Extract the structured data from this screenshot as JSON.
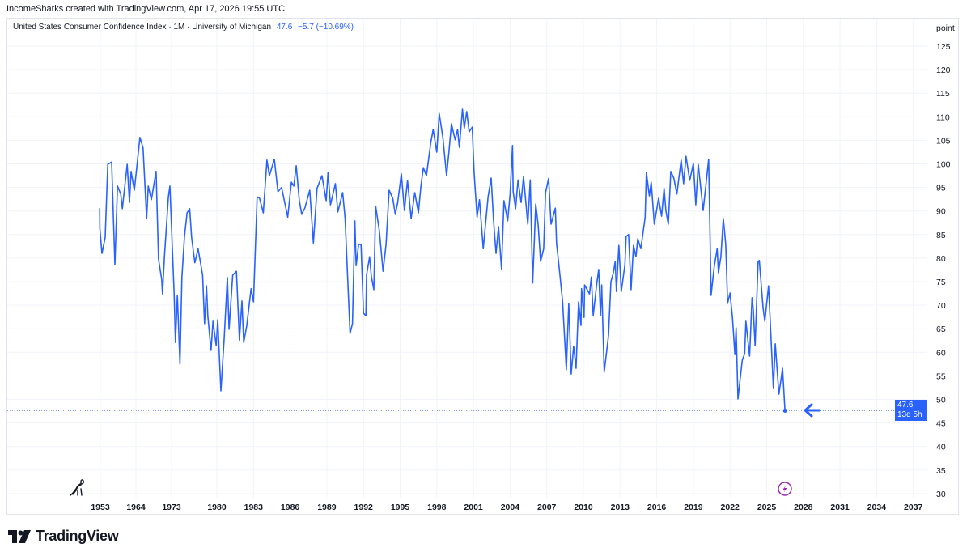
{
  "header": {
    "credit": "IncomeSharks created with TradingView.com, Apr 17, 2026 19:55 UTC"
  },
  "legend": {
    "title": "United States Consumer Confidence Index · 1M · University of Michigan",
    "last": "47.6",
    "change": "−5.7 (−10.69%)"
  },
  "price_tag": {
    "value": "47.6",
    "countdown": "13d 5h"
  },
  "brand": {
    "logo_text": "TradingView"
  },
  "colors": {
    "line": "#2962ff",
    "grid": "#f0f3fa",
    "lightning": "#9c27b0"
  },
  "icons": [
    "dino-icon",
    "lightning-icon",
    "arrow-left-icon",
    "tradingview-logo-icon"
  ],
  "chart_data": {
    "type": "line",
    "title": "United States Consumer Confidence Index · 1M · University of Michigan",
    "ylabel": "point",
    "ylim": [
      30,
      127
    ],
    "yticks": [
      125,
      120,
      115,
      110,
      105,
      100,
      95,
      90,
      85,
      80,
      75,
      70,
      65,
      60,
      55,
      50,
      45,
      40,
      35,
      30
    ],
    "xticks": [
      1953,
      1964,
      1973,
      1980,
      1983,
      1986,
      1989,
      1992,
      1995,
      1998,
      2001,
      2004,
      2007,
      2010,
      2013,
      2016,
      2019,
      2022,
      2025,
      2028,
      2031,
      2034,
      2037
    ],
    "grid": true,
    "last_value": 47.6,
    "series": [
      {
        "points": [
          [
            1952.8,
            90.6
          ],
          [
            1952.85,
            86.3
          ],
          [
            1953.5,
            81
          ],
          [
            1954.5,
            84.4
          ],
          [
            1955.3,
            99.9
          ],
          [
            1956.5,
            100.4
          ],
          [
            1957.5,
            78.6
          ],
          [
            1958.3,
            95.3
          ],
          [
            1959.3,
            93.6
          ],
          [
            1959.8,
            90.5
          ],
          [
            1961.3,
            99.9
          ],
          [
            1962,
            91.8
          ],
          [
            1962.5,
            98.4
          ],
          [
            1963.5,
            94.4
          ],
          [
            1964.4,
            100.8
          ],
          [
            1965,
            105.6
          ],
          [
            1965.8,
            103.4
          ],
          [
            1966.7,
            88.4
          ],
          [
            1967.1,
            95.3
          ],
          [
            1967.9,
            92.4
          ],
          [
            1969.1,
            98.4
          ],
          [
            1969.7,
            79.8
          ],
          [
            1970.5,
            75.5
          ],
          [
            1970.7,
            72.4
          ],
          [
            1971.2,
            80.3
          ],
          [
            1972.2,
            93
          ],
          [
            1972.6,
            95.3
          ],
          [
            1973.4,
            72.4
          ],
          [
            1973.6,
            62.1
          ],
          [
            1973.9,
            72.1
          ],
          [
            1974.3,
            57.5
          ],
          [
            1974.6,
            75.9
          ],
          [
            1975,
            84.6
          ],
          [
            1975.4,
            89.6
          ],
          [
            1975.8,
            90.5
          ],
          [
            1976.1,
            84.4
          ],
          [
            1976.6,
            79
          ],
          [
            1977.1,
            82
          ],
          [
            1977.8,
            76.4
          ],
          [
            1978.1,
            66.1
          ],
          [
            1978.4,
            74.1
          ],
          [
            1978.6,
            67.8
          ],
          [
            1979.1,
            60.4
          ],
          [
            1979.4,
            66.6
          ],
          [
            1979.9,
            61.4
          ],
          [
            1980.07,
            66.9
          ],
          [
            1980.33,
            51.8
          ],
          [
            1980.6,
            63.1
          ],
          [
            1980.86,
            75.9
          ],
          [
            1981,
            64.9
          ],
          [
            1981.3,
            76.4
          ],
          [
            1981.6,
            77.2
          ],
          [
            1981.85,
            62.6
          ],
          [
            1982.05,
            70.9
          ],
          [
            1982.2,
            62.1
          ],
          [
            1982.45,
            65.7
          ],
          [
            1982.8,
            73.5
          ],
          [
            1983,
            70.7
          ],
          [
            1983.3,
            93
          ],
          [
            1983.5,
            92.7
          ],
          [
            1983.8,
            89.6
          ],
          [
            1984.1,
            100.8
          ],
          [
            1984.3,
            97.5
          ],
          [
            1984.7,
            101
          ],
          [
            1985,
            94.1
          ],
          [
            1985.3,
            95
          ],
          [
            1985.8,
            88.7
          ],
          [
            1986.1,
            96.1
          ],
          [
            1986.3,
            95.3
          ],
          [
            1986.5,
            99.6
          ],
          [
            1986.75,
            92.2
          ],
          [
            1986.95,
            89.3
          ],
          [
            1987.2,
            90.6
          ],
          [
            1987.6,
            94.4
          ],
          [
            1987.9,
            83.2
          ],
          [
            1988.2,
            94.8
          ],
          [
            1988.6,
            97.5
          ],
          [
            1988.95,
            92.2
          ],
          [
            1989.1,
            98.2
          ],
          [
            1989.3,
            91.3
          ],
          [
            1989.7,
            95.8
          ],
          [
            1989.9,
            89.8
          ],
          [
            1990.3,
            93.9
          ],
          [
            1990.5,
            88.4
          ],
          [
            1990.9,
            64
          ],
          [
            1991.1,
            66.1
          ],
          [
            1991.3,
            87.9
          ],
          [
            1991.4,
            78.4
          ],
          [
            1991.6,
            82.9
          ],
          [
            1991.8,
            82.9
          ],
          [
            1992,
            68.3
          ],
          [
            1992.2,
            67.8
          ],
          [
            1992.25,
            76.4
          ],
          [
            1992.5,
            80.3
          ],
          [
            1992.65,
            76
          ],
          [
            1992.85,
            73.3
          ],
          [
            1993,
            91
          ],
          [
            1993.3,
            85.8
          ],
          [
            1993.6,
            77.2
          ],
          [
            1993.85,
            82.9
          ],
          [
            1994.1,
            94.4
          ],
          [
            1994.4,
            92.7
          ],
          [
            1994.6,
            89.3
          ],
          [
            1994.8,
            91.8
          ],
          [
            1995.1,
            97.9
          ],
          [
            1995.35,
            90.1
          ],
          [
            1995.6,
            96.5
          ],
          [
            1995.9,
            88.4
          ],
          [
            1996.2,
            93.9
          ],
          [
            1996.5,
            89.6
          ],
          [
            1996.7,
            95.3
          ],
          [
            1996.9,
            99.2
          ],
          [
            1997.15,
            97.5
          ],
          [
            1997.5,
            104.4
          ],
          [
            1997.7,
            107.3
          ],
          [
            1998,
            102.5
          ],
          [
            1998.2,
            110.7
          ],
          [
            1998.5,
            105.6
          ],
          [
            1998.8,
            97.5
          ],
          [
            1999,
            102.7
          ],
          [
            1999.2,
            108.5
          ],
          [
            1999.5,
            105.1
          ],
          [
            1999.7,
            107.3
          ],
          [
            1999.85,
            103.5
          ],
          [
            2000.1,
            111.6
          ],
          [
            2000.25,
            107.6
          ],
          [
            2000.45,
            111.1
          ],
          [
            2000.65,
            106.8
          ],
          [
            2000.9,
            107.8
          ],
          [
            2001.05,
            98.2
          ],
          [
            2001.3,
            88.7
          ],
          [
            2001.5,
            92.4
          ],
          [
            2001.8,
            82
          ],
          [
            2002.2,
            93
          ],
          [
            2002.45,
            97
          ],
          [
            2002.65,
            87.9
          ],
          [
            2002.85,
            81
          ],
          [
            2003.05,
            86.7
          ],
          [
            2003.3,
            77.7
          ],
          [
            2003.5,
            92.2
          ],
          [
            2003.8,
            87.9
          ],
          [
            2004,
            93.6
          ],
          [
            2004.2,
            103.9
          ],
          [
            2004.25,
            94.1
          ],
          [
            2004.45,
            90.5
          ],
          [
            2004.65,
            96.6
          ],
          [
            2004.9,
            91.8
          ],
          [
            2005.1,
            97.3
          ],
          [
            2005.45,
            87.2
          ],
          [
            2005.65,
            96.6
          ],
          [
            2005.85,
            74.7
          ],
          [
            2006.1,
            91.5
          ],
          [
            2006.3,
            87
          ],
          [
            2006.5,
            79.3
          ],
          [
            2006.75,
            82
          ],
          [
            2006.9,
            93.9
          ],
          [
            2007.15,
            96.9
          ],
          [
            2007.35,
            87.2
          ],
          [
            2007.7,
            90.6
          ],
          [
            2007.8,
            83.2
          ],
          [
            2008.1,
            75.9
          ],
          [
            2008.3,
            70.7
          ],
          [
            2008.6,
            56.3
          ],
          [
            2008.8,
            70.4
          ],
          [
            2009,
            55.4
          ],
          [
            2009.2,
            61.3
          ],
          [
            2009.4,
            56.6
          ],
          [
            2009.6,
            70.7
          ],
          [
            2009.8,
            65.7
          ],
          [
            2009.85,
            73.5
          ],
          [
            2010.05,
            67.4
          ],
          [
            2010.1,
            74.3
          ],
          [
            2010.5,
            72.4
          ],
          [
            2010.65,
            76
          ],
          [
            2010.8,
            67.8
          ],
          [
            2011.1,
            74.7
          ],
          [
            2011.25,
            77.6
          ],
          [
            2011.4,
            67.8
          ],
          [
            2011.5,
            74.3
          ],
          [
            2011.7,
            55.8
          ],
          [
            2012.05,
            63.5
          ],
          [
            2012.25,
            75
          ],
          [
            2012.45,
            76.9
          ],
          [
            2012.6,
            79.3
          ],
          [
            2012.7,
            72.9
          ],
          [
            2012.9,
            82.7
          ],
          [
            2013.1,
            72.9
          ],
          [
            2013.4,
            78.6
          ],
          [
            2013.5,
            84.6
          ],
          [
            2013.7,
            85
          ],
          [
            2013.9,
            73.3
          ],
          [
            2014.1,
            82.7
          ],
          [
            2014.3,
            80.3
          ],
          [
            2014.45,
            84.1
          ],
          [
            2014.7,
            82
          ],
          [
            2015.05,
            88.7
          ],
          [
            2015.15,
            98.2
          ],
          [
            2015.4,
            93.2
          ],
          [
            2015.55,
            96.1
          ],
          [
            2015.8,
            87.2
          ],
          [
            2016.15,
            92.7
          ],
          [
            2016.4,
            88.9
          ],
          [
            2016.6,
            94.8
          ],
          [
            2016.75,
            90.1
          ],
          [
            2016.95,
            87.2
          ],
          [
            2017.15,
            98.4
          ],
          [
            2017.4,
            97
          ],
          [
            2017.65,
            93.6
          ],
          [
            2018,
            100.8
          ],
          [
            2018.2,
            95.8
          ],
          [
            2018.4,
            101.6
          ],
          [
            2018.7,
            96.5
          ],
          [
            2019,
            100.1
          ],
          [
            2019.2,
            91.3
          ],
          [
            2019.4,
            99.9
          ],
          [
            2019.8,
            90.1
          ],
          [
            2020.25,
            101
          ],
          [
            2020.45,
            72.1
          ],
          [
            2020.7,
            78.1
          ],
          [
            2020.95,
            82
          ],
          [
            2021.05,
            76.9
          ],
          [
            2021.25,
            80.3
          ],
          [
            2021.45,
            88.4
          ],
          [
            2021.65,
            82.9
          ],
          [
            2021.8,
            70.4
          ],
          [
            2022,
            72.6
          ],
          [
            2022.2,
            67.4
          ],
          [
            2022.4,
            59.5
          ],
          [
            2022.5,
            65.2
          ],
          [
            2022.65,
            50.1
          ],
          [
            2023,
            58.3
          ],
          [
            2023.2,
            59.7
          ],
          [
            2023.3,
            66.6
          ],
          [
            2023.6,
            59.2
          ],
          [
            2023.8,
            71.6
          ],
          [
            2023.9,
            69.2
          ],
          [
            2024.05,
            61.4
          ],
          [
            2024.3,
            79.3
          ],
          [
            2024.4,
            79.5
          ],
          [
            2024.7,
            69.5
          ],
          [
            2024.85,
            66.6
          ],
          [
            2025.15,
            74.1
          ],
          [
            2025.55,
            52.3
          ],
          [
            2025.7,
            61.8
          ],
          [
            2026,
            51.1
          ],
          [
            2026.3,
            56.6
          ],
          [
            2026.5,
            47.6
          ]
        ]
      }
    ]
  }
}
